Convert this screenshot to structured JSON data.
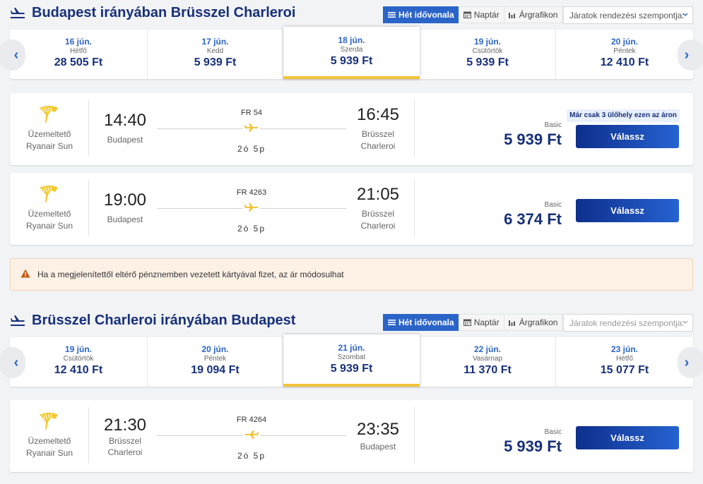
{
  "outbound": {
    "title": "Budapest irányában Brüsszel Charleroi",
    "tabs": {
      "week": "Hét idővonala",
      "calendar": "Naptár",
      "chart": "Árgrafikon"
    },
    "sort_placeholder": "Járatok rendezési szempontja:",
    "dates": [
      {
        "date": "16 jún.",
        "weekday": "Hétfő",
        "price": "28 505 Ft"
      },
      {
        "date": "17 jún.",
        "weekday": "Kedd",
        "price": "5 939 Ft"
      },
      {
        "date": "18 jún.",
        "weekday": "Szerda",
        "price": "5 939 Ft"
      },
      {
        "date": "19 jún.",
        "weekday": "Csütörtök",
        "price": "5 939 Ft"
      },
      {
        "date": "20 jún.",
        "weekday": "Péntek",
        "price": "12 410 Ft"
      }
    ],
    "flights": [
      {
        "operator_label": "Üzemeltető",
        "operator_name": "Ryanair Sun",
        "dep_time": "14:40",
        "dep_city": "Budapest",
        "flight_no": "FR 54",
        "duration": "2ó 5p",
        "arr_time": "16:45",
        "arr_city_1": "Brüsszel",
        "arr_city_2": "Charleroi",
        "badge": "Már csak 3 ülőhely ezen az áron",
        "fare": "Basic",
        "price": "5 939 Ft",
        "button": "Válassz"
      },
      {
        "operator_label": "Üzemeltető",
        "operator_name": "Ryanair Sun",
        "dep_time": "19:00",
        "dep_city": "Budapest",
        "flight_no": "FR 4263",
        "duration": "2ó 5p",
        "arr_time": "21:05",
        "arr_city_1": "Brüsszel",
        "arr_city_2": "Charleroi",
        "fare": "Basic",
        "price": "6 374 Ft",
        "button": "Válassz"
      }
    ]
  },
  "notice": "Ha a megjelenítettől eltérő pénznemben vezetett kártyával fizet, az ár módosulhat",
  "return": {
    "title": "Brüsszel Charleroi irányában Budapest",
    "tabs": {
      "week": "Hét idővonala",
      "calendar": "Naptár",
      "chart": "Árgrafikon"
    },
    "sort_placeholder": "Járatok rendezési szempontja:",
    "dates": [
      {
        "date": "19 jún.",
        "weekday": "Csütörtök",
        "price": "12 410 Ft"
      },
      {
        "date": "20 jún.",
        "weekday": "Péntek",
        "price": "19 094 Ft"
      },
      {
        "date": "21 jún.",
        "weekday": "Szombat",
        "price": "5 939 Ft"
      },
      {
        "date": "22 jún.",
        "weekday": "Vasárnap",
        "price": "11 370 Ft"
      },
      {
        "date": "23 jún.",
        "weekday": "Hétfő",
        "price": "15 077 Ft"
      }
    ],
    "flights": [
      {
        "operator_label": "Üzemeltető",
        "operator_name": "Ryanair Sun",
        "dep_time": "21:30",
        "dep_city_1": "Brüsszel",
        "dep_city_2": "Charleroi",
        "flight_no": "FR 4264",
        "duration": "2ó 5p",
        "arr_time": "23:35",
        "arr_city": "Budapest",
        "fare": "Basic",
        "price": "5 939 Ft",
        "button": "Válassz"
      }
    ]
  },
  "icons": {
    "plane": "plane-icon",
    "list": "list-icon",
    "calendar": "calendar-icon",
    "chart": "bar-chart-icon",
    "chevron": "chevron-down-icon",
    "arrow_left": "arrow-left-icon",
    "arrow_right": "arrow-right-icon",
    "logo": "ryanair-harp-logo",
    "warning": "warning-icon"
  },
  "colors": {
    "brand": "#17307a",
    "accent": "#2b64c8",
    "highlight": "#f3c33a",
    "button": "#0e2f8c"
  }
}
